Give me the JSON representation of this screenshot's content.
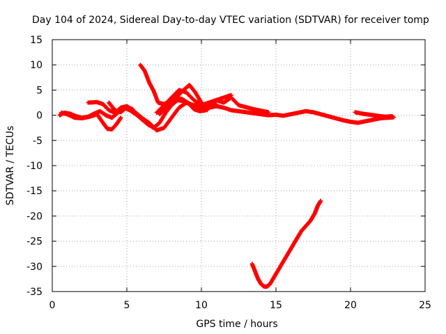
{
  "chart_data": {
    "type": "scatter",
    "title": "Day 104 of 2024, Sidereal Day-to-day VTEC variation (SDTVAR) for receiver tomp",
    "xlabel": "GPS time / hours",
    "ylabel": "SDTVAR / TECUs",
    "xlim": [
      0,
      25
    ],
    "ylim": [
      -35,
      15
    ],
    "xticks": [
      0,
      5,
      10,
      15,
      20,
      25
    ],
    "yticks": [
      15,
      10,
      5,
      0,
      -5,
      -10,
      -15,
      -20,
      -25,
      -30,
      -35
    ],
    "grid": true,
    "series_color": "#ff0000",
    "series": [
      {
        "name": "trace-1",
        "x": [
          0.5,
          0.8,
          1.2,
          1.6,
          2.0,
          2.4,
          2.8,
          3.2,
          3.6,
          4.0,
          4.4,
          4.8,
          5.2,
          5.6,
          6.0,
          6.4,
          6.8,
          7.2,
          7.6,
          8.0,
          8.4,
          8.8,
          9.2,
          9.6,
          10.0,
          10.5,
          11.0,
          11.5,
          12.0,
          12.5,
          13.0,
          13.5,
          14.0,
          14.5,
          15.0,
          15.5,
          16.0,
          16.5,
          17.0,
          17.5,
          18.0,
          18.5,
          19.0,
          19.5,
          20.0,
          20.5,
          21.0,
          21.5,
          22.0,
          22.5,
          22.9
        ],
        "y": [
          0.0,
          0.5,
          0.3,
          -0.2,
          -0.5,
          -0.3,
          0.3,
          0.8,
          0.0,
          -0.5,
          0.5,
          1.5,
          1.0,
          0.2,
          -0.8,
          -1.8,
          -2.5,
          -1.5,
          0.5,
          2.0,
          3.0,
          2.8,
          2.2,
          1.5,
          1.2,
          1.5,
          1.8,
          1.5,
          1.0,
          0.8,
          0.6,
          0.4,
          0.2,
          0.0,
          0.1,
          -0.1,
          0.2,
          0.5,
          0.8,
          0.6,
          0.2,
          -0.2,
          -0.6,
          -1.0,
          -1.3,
          -1.5,
          -1.2,
          -0.9,
          -0.6,
          -0.5,
          -0.4
        ]
      },
      {
        "name": "trace-2",
        "x": [
          0.6,
          1.0,
          1.5,
          2.0,
          2.5,
          3.0,
          3.4,
          3.7,
          4.0,
          4.3,
          4.6
        ],
        "y": [
          0.5,
          0.2,
          -0.5,
          -0.6,
          -0.3,
          0.2,
          -1.5,
          -2.7,
          -2.8,
          -1.8,
          -0.5
        ]
      },
      {
        "name": "trace-3",
        "x": [
          2.4,
          3.0,
          3.4,
          3.8,
          4.2,
          4.6,
          5.0,
          5.3,
          5.6,
          6.0,
          6.5,
          7.0,
          7.5,
          8.0,
          8.5,
          9.0,
          9.5,
          10.0,
          10.5,
          11.0
        ],
        "y": [
          2.5,
          2.6,
          2.2,
          1.0,
          0.5,
          1.5,
          1.8,
          1.2,
          0.5,
          -0.5,
          -1.5,
          -3.0,
          -2.5,
          -0.5,
          1.5,
          2.5,
          2.0,
          1.8,
          2.0,
          2.2
        ]
      },
      {
        "name": "trace-4",
        "x": [
          3.8,
          4.2,
          4.6,
          5.0,
          5.4
        ],
        "y": [
          2.5,
          1.0,
          0.6,
          1.6,
          1.2
        ]
      },
      {
        "name": "trace-5",
        "x": [
          5.9,
          6.2,
          6.5,
          6.8,
          7.1,
          7.5,
          7.9,
          8.3,
          8.7,
          9.1,
          9.5,
          9.9,
          10.3
        ],
        "y": [
          10.0,
          8.8,
          6.5,
          4.8,
          2.5,
          2.2,
          2.8,
          3.5,
          3.2,
          2.5,
          1.2,
          0.8,
          1.0
        ]
      },
      {
        "name": "trace-6",
        "x": [
          7.0,
          7.5,
          8.0,
          8.5,
          9.0,
          9.5,
          10.0,
          10.5,
          11.0,
          11.5,
          12.0
        ],
        "y": [
          0.5,
          2.0,
          3.5,
          5.0,
          4.5,
          3.0,
          2.0,
          2.5,
          3.0,
          3.5,
          4.0
        ]
      },
      {
        "name": "trace-7",
        "x": [
          7.2,
          7.6,
          8.0,
          8.4,
          8.8,
          9.2,
          9.6,
          10.0,
          10.4
        ],
        "y": [
          0.2,
          1.5,
          3.0,
          3.8,
          5.0,
          6.0,
          4.5,
          2.5,
          1.0
        ]
      },
      {
        "name": "trace-8",
        "x": [
          11.0,
          11.5,
          12.0,
          12.5,
          13.0,
          13.5,
          14.0,
          14.5
        ],
        "y": [
          3.0,
          2.5,
          3.5,
          2.0,
          1.6,
          1.2,
          0.9,
          0.6
        ]
      },
      {
        "name": "trace-9",
        "x": [
          20.3,
          20.8,
          21.3,
          21.8,
          22.3,
          22.8
        ],
        "y": [
          0.6,
          0.3,
          0.1,
          -0.1,
          -0.3,
          -0.2
        ]
      },
      {
        "name": "trace-10",
        "x": [
          13.4,
          13.6,
          13.8,
          14.0,
          14.2,
          14.4,
          14.6,
          14.9,
          15.2,
          15.5,
          15.8,
          16.1,
          16.4,
          16.7,
          17.0,
          17.3,
          17.6,
          17.8,
          18.0
        ],
        "y": [
          -29.5,
          -31.0,
          -32.5,
          -33.5,
          -34.0,
          -34.0,
          -33.5,
          -32.0,
          -30.5,
          -29.0,
          -27.5,
          -26.0,
          -24.5,
          -23.0,
          -22.0,
          -21.0,
          -19.5,
          -18.0,
          -17.0
        ]
      }
    ]
  }
}
